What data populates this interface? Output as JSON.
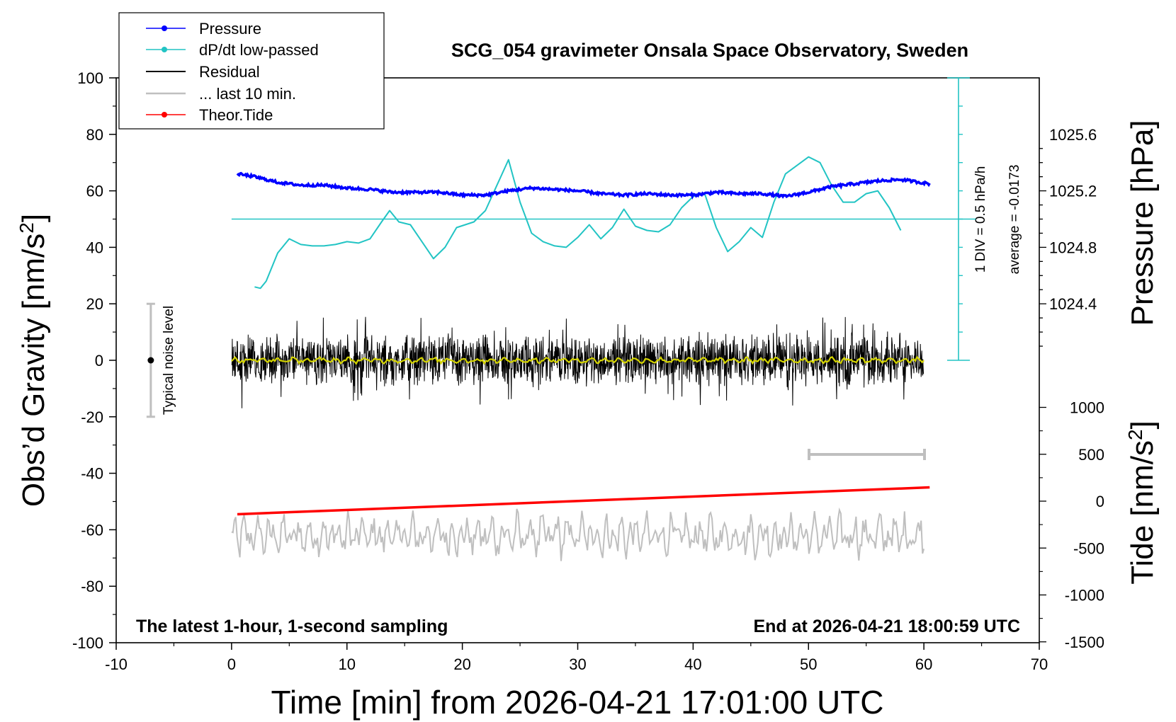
{
  "chart_data": {
    "type": "line",
    "title": "SCG_054 gravimeter Onsala Space Observatory, Sweden",
    "xlabel": "Time [min] from 2026-04-21 17:01:00 UTC",
    "ylabel_left": "Obs’d Gravity [nm/s",
    "ylabel_left_sup": "2",
    "ylabel_left_tail": "]",
    "ylabel_right_pressure": "Pressure [hPa]",
    "ylabel_right_tide": "Tide [nm/s",
    "ylabel_right_tide_sup": "2",
    "ylabel_right_tide_tail": "]",
    "xlim": [
      -10,
      70
    ],
    "ylim": [
      -100,
      100
    ],
    "x_ticks": [
      "-10",
      "0",
      "10",
      "20",
      "30",
      "40",
      "50",
      "60",
      "70"
    ],
    "y_ticks": [
      "-100",
      "-80",
      "-60",
      "-40",
      "-20",
      "0",
      "20",
      "40",
      "60",
      "80",
      "100"
    ],
    "pressure_axis": {
      "ticks": [
        "1024.4",
        "1024.8",
        "1025.2",
        "1025.6"
      ],
      "values": [
        1024.4,
        1024.8,
        1025.2,
        1025.6
      ]
    },
    "tide_axis": {
      "ticks": [
        "1000",
        "500",
        "0",
        "-500",
        "-1000",
        "-1500"
      ],
      "values": [
        1000,
        500,
        0,
        -500,
        -1000,
        -1500
      ]
    },
    "annotation_bottom_left": "The latest 1-hour, 1-second sampling",
    "annotation_bottom_right": "End at 2026-04-21 18:00:59 UTC",
    "noise_label": "Typical noise level",
    "noise_range": [
      -20,
      20
    ],
    "dpdt_scale_label": "1 DIV = 0.5 hPa/h",
    "dpdt_average_label": "average = -0.0173",
    "legend": [
      "Pressure",
      "dP/dt low-passed",
      "Residual",
      "... last 10 min.",
      "Theor.Tide"
    ],
    "colors": {
      "pressure": "#0000ff",
      "dpdt": "#22c4c4",
      "residual": "#000000",
      "last10": "#bfbfbf",
      "tide": "#ff0000",
      "residual_smooth": "#d4d400"
    },
    "series": [
      {
        "name": "Pressure",
        "x": [
          0.5,
          2,
          4,
          6,
          8,
          10,
          12,
          14,
          16,
          18,
          20,
          22,
          24,
          26,
          28,
          30,
          32,
          34,
          36,
          38,
          40,
          42,
          44,
          46,
          48,
          50,
          52,
          54,
          56,
          58,
          60.5
        ],
        "y": [
          66,
          65,
          63,
          62,
          62,
          61,
          60.5,
          59.5,
          59.5,
          59.5,
          58.5,
          58.5,
          60,
          61,
          60.5,
          60,
          59,
          58.5,
          59,
          58.5,
          58.5,
          59.5,
          59,
          59,
          58,
          59.5,
          61.5,
          62.5,
          63.5,
          64,
          62.5
        ]
      },
      {
        "name": "dP/dt low-passed",
        "x": [
          2,
          2.5,
          3,
          4,
          5,
          6,
          7,
          8,
          9,
          10,
          11,
          12,
          13,
          13.7,
          14.5,
          15.5,
          16.5,
          17.5,
          18.5,
          19.5,
          21,
          22,
          23,
          24,
          25,
          26,
          27,
          28,
          29,
          30,
          31,
          32,
          33,
          34,
          35,
          36,
          37,
          38,
          39,
          40,
          41,
          42,
          43,
          44,
          45,
          46,
          47,
          48,
          49,
          50,
          51,
          52,
          53,
          54,
          55,
          56,
          57,
          58
        ],
        "y": [
          26,
          25.5,
          28,
          38,
          43,
          41,
          40.5,
          40.5,
          41,
          42,
          41.5,
          43,
          49,
          53,
          49,
          48,
          42,
          36,
          40,
          47,
          49,
          53,
          62,
          71,
          56,
          45,
          42,
          40.5,
          40,
          43.5,
          48,
          43,
          47,
          53.5,
          47.5,
          46,
          45.5,
          48,
          54,
          58,
          59,
          47,
          38.5,
          42,
          47,
          43.5,
          56,
          66,
          69,
          72,
          70,
          62,
          56,
          56,
          59,
          60,
          54,
          46
        ]
      },
      {
        "name": "Residual",
        "x": [
          0,
          60
        ],
        "y": [
          0,
          0
        ]
      },
      {
        "name": "... last 10 min.",
        "x": [
          0,
          60
        ],
        "y": [
          -62,
          -62
        ]
      },
      {
        "name": "Theor.Tide",
        "x": [
          0.5,
          60.5
        ],
        "y": [
          -54.5,
          -45
        ]
      }
    ]
  }
}
